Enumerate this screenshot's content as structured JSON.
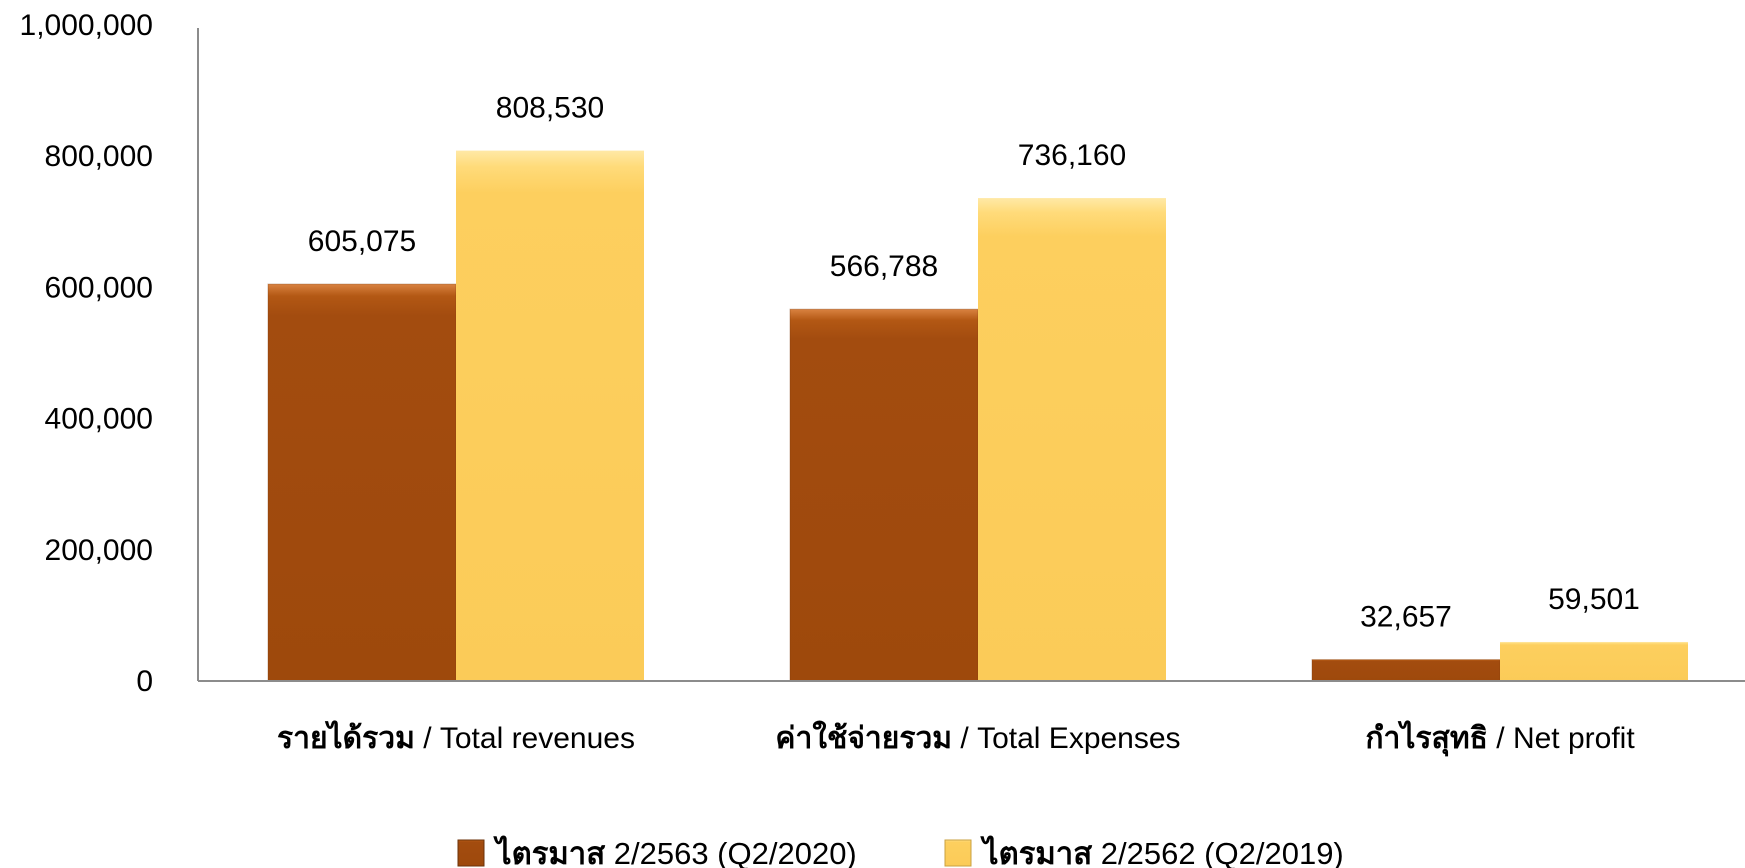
{
  "chart_data": {
    "type": "bar",
    "categories": [
      {
        "thai": "รายได้รวม",
        "en": " / Total revenues"
      },
      {
        "thai": "ค่าใช้จ่ายรวม",
        "en": " / Total Expenses"
      },
      {
        "thai": "กำไรสุทธิ",
        "en": " / Net profit"
      }
    ],
    "series": [
      {
        "name_thai": "ไตรมาส",
        "name_rest": " 2/2563 (Q2/2020)",
        "values": [
          605075,
          566788,
          32657
        ],
        "labels": [
          "605,075",
          "566,788",
          "32,657"
        ],
        "color": "#A34C0F"
      },
      {
        "name_thai": "ไตรมาส",
        "name_rest": " 2/2562 (Q2/2019)",
        "values": [
          808530,
          736160,
          59501
        ],
        "labels": [
          "808,530",
          "736,160",
          "59,501"
        ],
        "color": "#FDCF5E"
      }
    ],
    "ylim": [
      0,
      1000000
    ],
    "yticks": [
      0,
      200000,
      400000,
      600000,
      800000,
      1000000
    ],
    "ytick_labels": [
      "0",
      "200,000",
      "400,000",
      "600,000",
      "800,000",
      "1,000,000"
    ],
    "grid": false,
    "legend_position": "bottom"
  }
}
